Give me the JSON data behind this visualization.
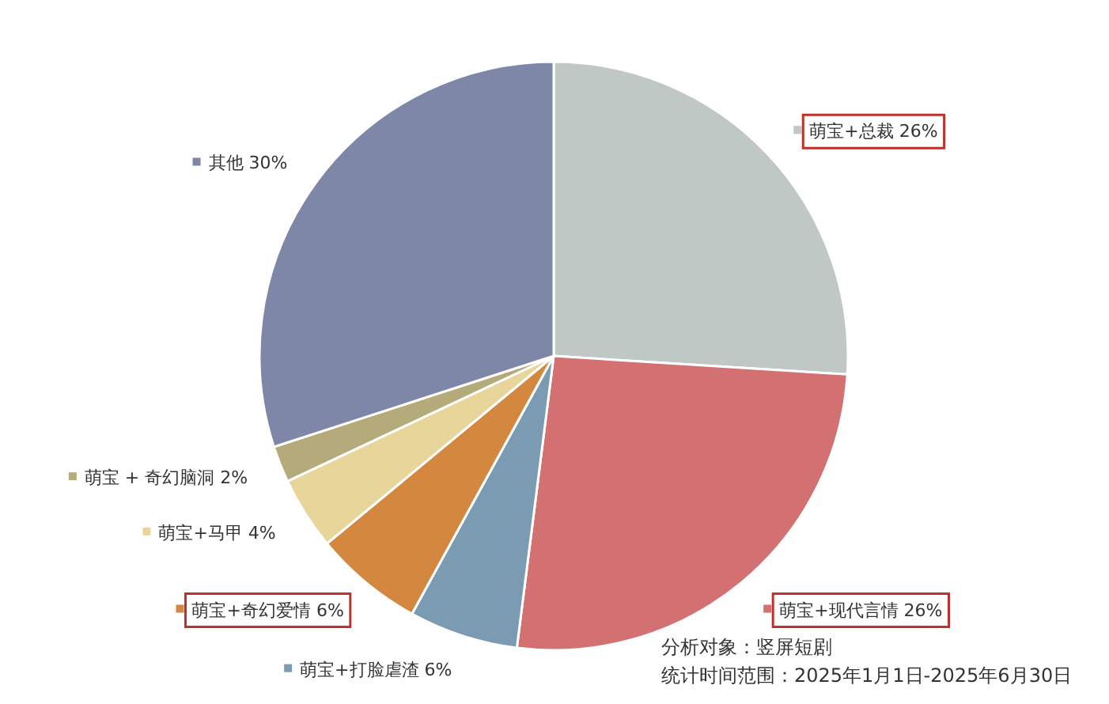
{
  "chart_data": {
    "type": "pie",
    "categories": [
      "萌宝+总裁",
      "萌宝+现代言情",
      "萌宝+打脸虐渣",
      "萌宝+奇幻爱情",
      "萌宝+马甲",
      "萌宝 + 奇幻脑洞",
      "其他"
    ],
    "values": [
      26,
      26,
      6,
      6,
      4,
      2,
      30
    ],
    "colors": [
      "#bfc8c4",
      "#d27072",
      "#7b9bb3",
      "#d4883f",
      "#e8d59a",
      "#b5aa7a",
      "#7e87a8"
    ],
    "legend": "bottom left",
    "value_labels": [
      "26%",
      "26%",
      "6%",
      "6%",
      "4%",
      "2%",
      "30%"
    ],
    "annotations": [
      "分析对象：竖屏短剧",
      "统计时间范围：2025年1月1日-2025年6月30日"
    ]
  }
}
